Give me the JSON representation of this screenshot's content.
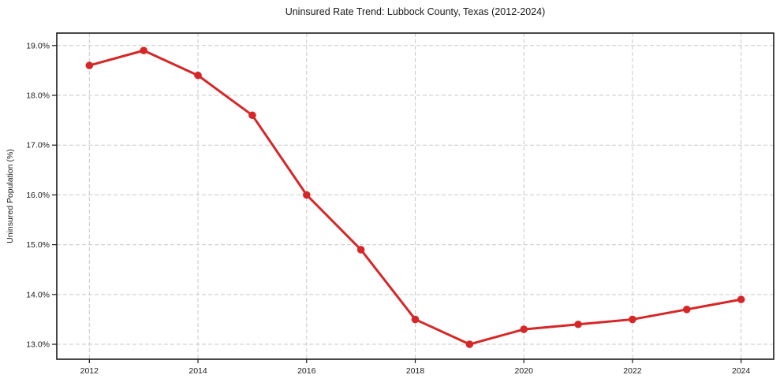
{
  "chart_data": {
    "type": "line",
    "title": "Uninsured Rate Trend: Lubbock County, Texas (2012-2024)",
    "xlabel": "",
    "ylabel": "Uninsured Population (%)",
    "series": [
      {
        "name": "Uninsured rate",
        "x": [
          2012,
          2013,
          2014,
          2015,
          2016,
          2017,
          2018,
          2019,
          2020,
          2021,
          2022,
          2023,
          2024
        ],
        "values": [
          18.6,
          18.9,
          18.4,
          17.6,
          16.0,
          14.9,
          13.5,
          13.0,
          13.3,
          13.4,
          13.5,
          13.7,
          13.9
        ]
      }
    ],
    "x_ticks": [
      2012,
      2014,
      2016,
      2018,
      2020,
      2022,
      2024
    ],
    "x_tick_labels": [
      "2012",
      "2014",
      "2016",
      "2018",
      "2020",
      "2022",
      "2024"
    ],
    "y_ticks": [
      13,
      14,
      15,
      16,
      17,
      18,
      19
    ],
    "y_tick_labels": [
      "13.0%",
      "14.0%",
      "15.0%",
      "16.0%",
      "17.0%",
      "18.0%",
      "19.0%"
    ],
    "xlim": [
      2011.4,
      2024.6
    ],
    "ylim": [
      12.7,
      19.25
    ],
    "grid": true,
    "legend": "none",
    "line_color": "#d62728",
    "marker": "circle"
  }
}
